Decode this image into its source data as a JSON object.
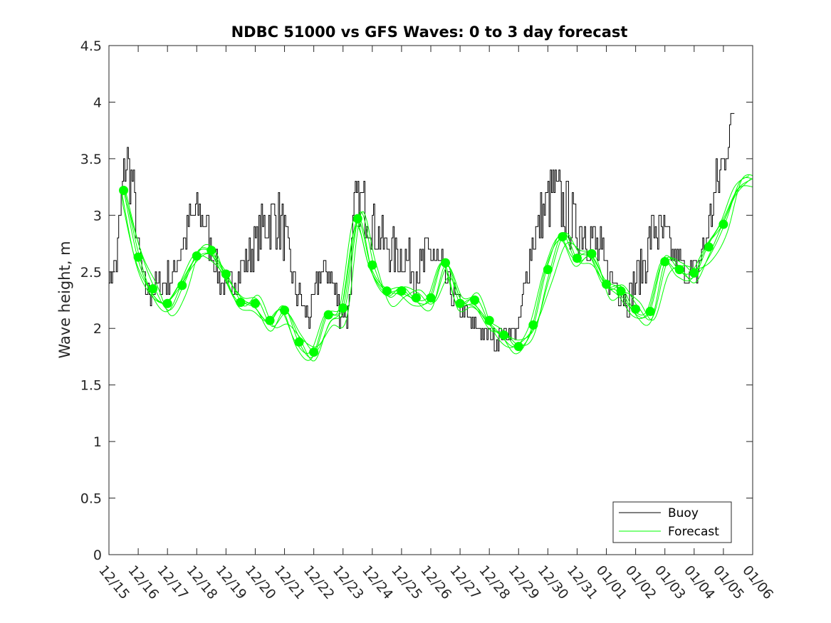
{
  "chart_data": {
    "type": "line",
    "title": "NDBC 51000 vs GFS Waves: 0 to 3 day forecast",
    "xlabel": "",
    "ylabel": "Wave height, m",
    "xlim": [
      0,
      22
    ],
    "ylim": [
      0,
      4.5
    ],
    "yticks": [
      0,
      0.5,
      1,
      1.5,
      2,
      2.5,
      3,
      3.5,
      4,
      4.5
    ],
    "ytick_labels": [
      "0",
      "0.5",
      "1",
      "1.5",
      "2",
      "2.5",
      "3",
      "3.5",
      "4",
      "4.5"
    ],
    "xtick_labels": [
      "12/15",
      "12/16",
      "12/17",
      "12/18",
      "12/19",
      "12/20",
      "12/21",
      "12/22",
      "12/23",
      "12/24",
      "12/25",
      "12/26",
      "12/27",
      "12/28",
      "12/29",
      "12/30",
      "12/31",
      "01/01",
      "01/02",
      "01/03",
      "01/04",
      "01/05",
      "01/06"
    ],
    "legend": {
      "location": "bottom-right",
      "entries": [
        "Buoy",
        "Forecast"
      ]
    },
    "colors": {
      "buoy": "#000000",
      "forecast": "#00ff00",
      "axis": "#262626"
    },
    "buoy_anchors": {
      "x": [
        0,
        0.25,
        0.45,
        0.55,
        0.8,
        1.0,
        1.2,
        1.4,
        1.8,
        2.2,
        2.6,
        2.85,
        3.2,
        3.6,
        4.0,
        4.4,
        4.9,
        5.35,
        5.75,
        6.0,
        6.3,
        6.6,
        6.9,
        7.2,
        7.5,
        7.85,
        8.15,
        8.4,
        8.7,
        9.2,
        9.6,
        10.2,
        10.6,
        11.0,
        11.4,
        11.7,
        12.0,
        12.4,
        12.8,
        13.2,
        13.6,
        14.0,
        14.4,
        14.8,
        15.2,
        15.5,
        15.9,
        16.3,
        16.7,
        17.0,
        17.3,
        17.7,
        18.0,
        18.3,
        18.6,
        19.0,
        19.4,
        19.8,
        20.1,
        20.4,
        20.8,
        21.2,
        21.4
      ],
      "y": [
        2.4,
        2.6,
        3.2,
        3.5,
        3.3,
        2.7,
        2.4,
        2.3,
        2.4,
        2.5,
        2.8,
        3.0,
        3.0,
        2.6,
        2.3,
        2.5,
        2.7,
        2.9,
        3.0,
        2.8,
        2.4,
        2.2,
        2.1,
        2.5,
        2.5,
        2.2,
        2.1,
        3.1,
        3.1,
        2.8,
        2.7,
        2.6,
        2.5,
        2.7,
        2.5,
        2.3,
        2.2,
        2.05,
        1.95,
        1.9,
        1.95,
        2.0,
        2.7,
        3.0,
        3.2,
        3.1,
        2.9,
        2.9,
        2.7,
        2.5,
        2.4,
        2.25,
        2.4,
        2.6,
        2.9,
        2.8,
        2.6,
        2.5,
        2.5,
        2.8,
        3.3,
        3.7,
        4.0
      ],
      "noise": [
        0,
        0.15,
        0.3,
        0.3,
        0.25,
        0.15,
        0.1,
        0.1,
        0.15,
        0.15,
        0.2,
        0.2,
        0.2,
        0.15,
        0.15,
        0.15,
        0.2,
        0.25,
        0.3,
        0.2,
        0.15,
        0.15,
        0.15,
        0.15,
        0.15,
        0.15,
        0.15,
        0.25,
        0.25,
        0.2,
        0.2,
        0.2,
        0.2,
        0.25,
        0.2,
        0.12,
        0.12,
        0.1,
        0.08,
        0.08,
        0.1,
        0.12,
        0.2,
        0.25,
        0.3,
        0.3,
        0.25,
        0.3,
        0.25,
        0.2,
        0.12,
        0.15,
        0.2,
        0.25,
        0.25,
        0.2,
        0.15,
        0.15,
        0.15,
        0.2,
        0.25,
        0.2,
        0.1
      ]
    },
    "forecast_x": [
      0.5,
      1.0,
      1.5,
      2.0,
      2.5,
      3.0,
      3.5,
      4.0,
      4.5,
      5.0,
      5.5,
      6.0,
      6.5,
      7.0,
      7.5,
      8.0,
      8.5,
      9.0,
      9.5,
      10.0,
      10.5,
      11.0,
      11.5,
      12.0,
      12.5,
      13.0,
      13.5,
      14.0,
      14.5,
      15.0,
      15.5,
      16.0,
      16.5,
      17.0,
      17.5,
      18.0,
      18.5,
      19.0,
      19.5,
      20.0,
      20.5,
      21.0,
      21.5,
      22.0
    ],
    "forecast_y": [
      3.22,
      2.63,
      2.35,
      2.22,
      2.38,
      2.64,
      2.69,
      2.48,
      2.23,
      2.22,
      2.07,
      2.16,
      1.88,
      1.79,
      2.12,
      2.18,
      2.97,
      2.56,
      2.33,
      2.33,
      2.27,
      2.27,
      2.58,
      2.22,
      2.25,
      2.07,
      1.94,
      1.84,
      2.03,
      2.52,
      2.81,
      2.62,
      2.66,
      2.39,
      2.33,
      2.17,
      2.15,
      2.59,
      2.52,
      2.49,
      2.72,
      2.92,
      3.25,
      3.35
    ],
    "forecast_ensemble_offsets": [
      0,
      0.04,
      -0.04,
      0.07,
      -0.06,
      0.1
    ]
  }
}
